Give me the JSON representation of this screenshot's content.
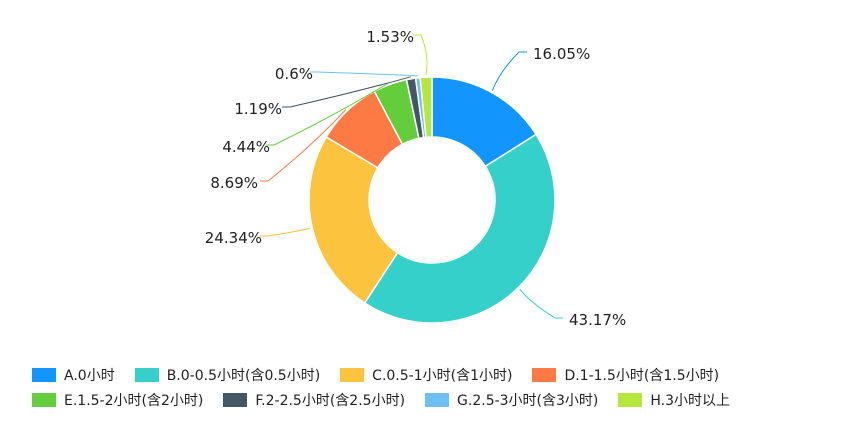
{
  "chart_data": {
    "type": "pie",
    "donut": true,
    "title": "",
    "legend_position": "bottom",
    "series": [
      {
        "category": "A.0小时",
        "value": 16.05,
        "label": "16.05%",
        "color": "#1296fd"
      },
      {
        "category": "B.0-0.5小时(含0.5小时)",
        "value": 43.17,
        "label": "43.17%",
        "color": "#36d0cb"
      },
      {
        "category": "C.0.5-1小时(含1小时)",
        "value": 24.34,
        "label": "24.34%",
        "color": "#fcc33e"
      },
      {
        "category": "D.1-1.5小时(含1.5小时)",
        "value": 8.69,
        "label": "8.69%",
        "color": "#fe7a45"
      },
      {
        "category": "E.1.5-2小时(含2小时)",
        "value": 4.44,
        "label": "4.44%",
        "color": "#64cd3c"
      },
      {
        "category": "F.2-2.5小时(含2.5小时)",
        "value": 1.19,
        "label": "1.19%",
        "color": "#455664"
      },
      {
        "category": "G.2.5-3小时(含3小时)",
        "value": 0.6,
        "label": "0.6%",
        "color": "#6bc1f7"
      },
      {
        "category": "H.3小时以上",
        "value": 1.53,
        "label": "1.53%",
        "color": "#b7e73a"
      }
    ]
  }
}
